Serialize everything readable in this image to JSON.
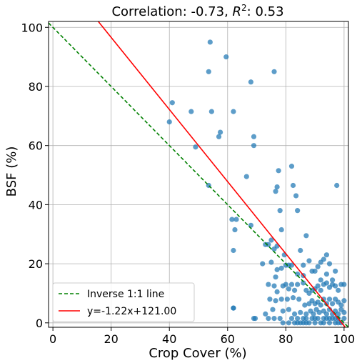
{
  "chart_data": {
    "type": "scatter",
    "title": "Correlation: -0.73, R²: 0.53",
    "title_parts": {
      "prefix": "Correlation: -0.73, ",
      "r": "R",
      "sup": "2",
      "suffix": ": 0.53"
    },
    "xlabel": "Crop Cover (%)",
    "ylabel": "BSF (%)",
    "xlim": [
      -1.5,
      101.5
    ],
    "ylim": [
      -1.5,
      102
    ],
    "xticks": [
      0,
      20,
      40,
      60,
      80,
      100
    ],
    "yticks": [
      0,
      20,
      40,
      60,
      80,
      100
    ],
    "grid": true,
    "legend_position": "lower-left",
    "colors": {
      "points": "#1f77b4",
      "inverse_line": "#008000",
      "fit_line": "#ff0000"
    },
    "lines": [
      {
        "name": "Inverse 1:1 line",
        "slope": -1,
        "intercept": 100,
        "style": "dashed",
        "color": "#008000"
      },
      {
        "name": "y=-1.22x+121.00",
        "slope": -1.22,
        "intercept": 121.0,
        "style": "solid",
        "color": "#ff0000"
      }
    ],
    "points": [
      [
        54,
        95
      ],
      [
        59.5,
        90
      ],
      [
        53.5,
        85
      ],
      [
        76,
        85
      ],
      [
        68,
        81.5
      ],
      [
        41,
        74.5
      ],
      [
        40,
        68
      ],
      [
        47.5,
        71.5
      ],
      [
        54.5,
        71.5
      ],
      [
        62,
        71.5
      ],
      [
        57.5,
        64.5
      ],
      [
        57,
        63
      ],
      [
        69,
        63
      ],
      [
        69,
        60
      ],
      [
        49,
        59.5
      ],
      [
        66.5,
        49.5
      ],
      [
        77.5,
        51.5
      ],
      [
        82,
        53
      ],
      [
        77,
        46
      ],
      [
        76.5,
        44.5
      ],
      [
        83.5,
        43
      ],
      [
        82.5,
        46.5
      ],
      [
        97.5,
        46.5
      ],
      [
        53.5,
        46.5
      ],
      [
        61.5,
        35
      ],
      [
        63,
        35
      ],
      [
        62.5,
        31.5
      ],
      [
        68,
        33
      ],
      [
        84,
        38
      ],
      [
        78,
        38
      ],
      [
        62,
        24.5
      ],
      [
        62,
        5
      ],
      [
        73,
        26.5
      ],
      [
        74,
        26.5
      ],
      [
        75,
        28
      ],
      [
        76,
        25
      ],
      [
        77,
        26
      ],
      [
        78.5,
        31.5
      ],
      [
        79.5,
        23
      ],
      [
        85,
        24.5
      ],
      [
        87,
        29.5
      ],
      [
        72,
        20
      ],
      [
        75,
        20.5
      ],
      [
        77,
        18
      ],
      [
        78.5,
        18.5
      ],
      [
        80,
        19.5
      ],
      [
        81,
        19.5
      ],
      [
        82,
        19.5
      ],
      [
        84,
        16.5
      ],
      [
        86,
        19.5
      ],
      [
        88,
        21
      ],
      [
        89,
        17.5
      ],
      [
        90,
        17.5
      ],
      [
        91,
        19
      ],
      [
        92,
        20.5
      ],
      [
        93,
        21.5
      ],
      [
        94,
        23
      ],
      [
        95,
        20
      ],
      [
        97,
        17.5
      ],
      [
        74,
        13
      ],
      [
        76,
        12.5
      ],
      [
        77,
        10.5
      ],
      [
        79,
        12.5
      ],
      [
        80,
        13
      ],
      [
        81,
        11.5
      ],
      [
        82,
        13
      ],
      [
        83,
        11
      ],
      [
        84,
        13
      ],
      [
        86,
        13.5
      ],
      [
        87,
        11
      ],
      [
        88,
        10
      ],
      [
        89,
        11
      ],
      [
        90,
        11.5
      ],
      [
        91,
        12.5
      ],
      [
        92,
        11
      ],
      [
        93,
        13
      ],
      [
        94,
        13.5
      ],
      [
        95,
        12
      ],
      [
        96,
        13
      ],
      [
        97,
        12.5
      ],
      [
        98,
        11
      ],
      [
        99,
        13
      ],
      [
        100,
        13
      ],
      [
        92,
        14.5
      ],
      [
        94,
        16.5
      ],
      [
        96,
        14.5
      ],
      [
        76.5,
        15.5
      ],
      [
        86,
        16
      ],
      [
        74.5,
        8
      ],
      [
        76.5,
        7.5
      ],
      [
        78.5,
        8
      ],
      [
        80.5,
        8
      ],
      [
        82.5,
        8.5
      ],
      [
        84.5,
        8
      ],
      [
        86.5,
        6
      ],
      [
        88,
        6.5
      ],
      [
        89,
        7.5
      ],
      [
        90,
        6.5
      ],
      [
        91,
        7
      ],
      [
        92,
        6
      ],
      [
        93,
        8
      ],
      [
        94,
        6.5
      ],
      [
        95,
        8
      ],
      [
        96,
        6.5
      ],
      [
        97,
        8
      ],
      [
        98,
        7
      ],
      [
        99,
        6
      ],
      [
        100,
        7.5
      ],
      [
        62,
        5
      ],
      [
        75.5,
        4.5
      ],
      [
        79,
        4
      ],
      [
        81,
        4.5
      ],
      [
        83,
        3
      ],
      [
        85,
        3.5
      ],
      [
        87,
        3
      ],
      [
        88.5,
        4
      ],
      [
        89.5,
        3
      ],
      [
        90.5,
        4.5
      ],
      [
        91.5,
        3.5
      ],
      [
        93,
        4
      ],
      [
        94,
        3
      ],
      [
        95,
        4.5
      ],
      [
        96,
        3
      ],
      [
        97,
        4
      ],
      [
        98,
        3
      ],
      [
        99,
        4.5
      ],
      [
        100,
        3.5
      ],
      [
        73,
        3
      ],
      [
        69,
        1.5
      ],
      [
        69.5,
        1.5
      ],
      [
        74,
        1.5
      ],
      [
        76,
        1.5
      ],
      [
        78,
        1.5
      ],
      [
        82,
        1.5
      ],
      [
        84,
        1.5
      ],
      [
        86,
        1.5
      ],
      [
        87,
        1.5
      ],
      [
        89,
        1.5
      ],
      [
        90,
        1.5
      ],
      [
        91,
        1.5
      ],
      [
        93,
        1.5
      ],
      [
        94,
        1.5
      ],
      [
        95,
        1.5
      ],
      [
        96,
        1.5
      ],
      [
        97,
        1.5
      ],
      [
        98,
        1.5
      ],
      [
        100,
        1.5
      ],
      [
        79,
        0
      ],
      [
        81,
        0
      ],
      [
        83,
        0
      ],
      [
        84,
        0
      ],
      [
        85,
        0
      ],
      [
        86,
        0
      ],
      [
        87,
        0
      ],
      [
        88,
        0
      ],
      [
        90,
        0
      ],
      [
        92,
        0
      ],
      [
        93,
        0
      ],
      [
        95,
        0
      ],
      [
        97,
        0
      ],
      [
        98,
        0
      ],
      [
        99,
        0
      ]
    ]
  }
}
